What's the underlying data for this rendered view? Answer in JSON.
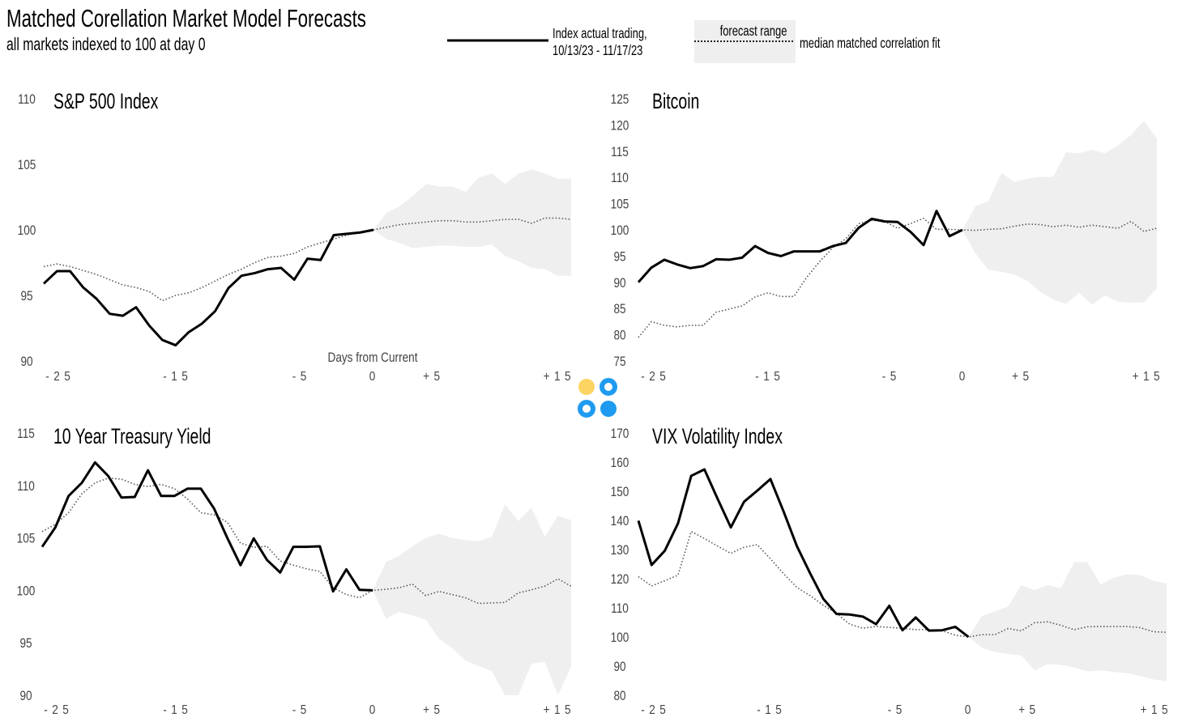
{
  "header": {
    "title": "Matched Corellation Market Model Forecasts",
    "subtitle": "all markets indexed to 100 at day 0"
  },
  "legend": {
    "actual_line1": "Index actual trading,",
    "actual_line2": "10/13/23 - 11/17/23",
    "range_label": "forecast range",
    "median_label": "median matched correlation fit"
  },
  "colors": {
    "actual": "#000000",
    "median": "#555555",
    "band": "#efefef",
    "logo_yellow": "#fcd462",
    "logo_blue": "#1e9bf0"
  },
  "logo_icon": "four-circles-logo",
  "chart_data": [
    {
      "type": "line",
      "title": "S&P 500 Index",
      "xlabel": "Days from Current",
      "x_ticks": [
        "- 2 5",
        "- 1 5",
        "- 5",
        "0",
        "+ 5",
        "+ 1 5"
      ],
      "xlim": [
        -25,
        15
      ],
      "ylim": [
        90,
        110
      ],
      "y_ticks": [
        "110",
        "105",
        "100",
        "95",
        "90"
      ],
      "y_tick_values": [
        110,
        105,
        100,
        95,
        90
      ],
      "actual": [
        95.9,
        96.85,
        96.85,
        95.6,
        94.75,
        93.6,
        93.45,
        94.1,
        92.7,
        91.6,
        91.2,
        92.2,
        92.85,
        93.8,
        95.55,
        96.5,
        96.7,
        97.0,
        97.1,
        96.2,
        97.8,
        97.7,
        99.6,
        99.7,
        99.8,
        100
      ],
      "median": [
        97.2,
        97.4,
        97.2,
        96.9,
        96.6,
        96.2,
        95.8,
        95.6,
        95.3,
        94.6,
        95.0,
        95.2,
        95.6,
        96.1,
        96.6,
        97.0,
        97.5,
        97.9,
        98.0,
        98.2,
        98.7,
        99.0,
        99.3,
        99.6,
        99.8,
        100,
        100.2,
        100.4,
        100.5,
        100.6,
        100.7,
        100.7,
        100.6,
        100.6,
        100.7,
        100.8,
        100.8,
        100.5,
        100.9,
        100.9,
        100.8
      ],
      "band_upper": [
        100,
        101.3,
        101.8,
        102.6,
        103.5,
        103.3,
        103.3,
        102.9,
        104.0,
        104.3,
        103.5,
        104.3,
        104.6,
        104.3,
        103.9,
        103.9
      ],
      "band_lower": [
        100,
        99.3,
        99.0,
        98.6,
        98.7,
        98.8,
        98.8,
        98.7,
        98.7,
        98.9,
        98.0,
        97.6,
        97.1,
        97.0,
        96.5,
        96.5
      ]
    },
    {
      "type": "line",
      "title": "Bitcoin",
      "x_ticks": [
        "- 2 5",
        "- 1 5",
        "- 5",
        "0",
        "+ 5",
        "+ 1 5"
      ],
      "xlim": [
        -25,
        15
      ],
      "ylim": [
        75,
        125
      ],
      "y_ticks": [
        "125",
        "120",
        "115",
        "110",
        "105",
        "100",
        "95",
        "90",
        "85",
        "80",
        "75"
      ],
      "y_tick_values": [
        125,
        120,
        115,
        110,
        105,
        100,
        95,
        90,
        85,
        80,
        75
      ],
      "actual": [
        90,
        92.8,
        94.3,
        93.4,
        92.7,
        93.1,
        94.4,
        94.3,
        94.7,
        96.9,
        95.6,
        95.0,
        95.9,
        95.9,
        95.9,
        96.9,
        97.5,
        100.4,
        102.1,
        101.6,
        101.5,
        99.6,
        97.1,
        103.6,
        98.8,
        100
      ],
      "median": [
        79.5,
        82.5,
        81.8,
        81.5,
        81.8,
        81.8,
        84.3,
        84.9,
        85.5,
        87.2,
        88.0,
        87.3,
        87.3,
        91.0,
        94.0,
        96.6,
        98.3,
        101.2,
        101.8,
        101.6,
        100.3,
        101.2,
        102.2,
        100.1,
        100.1,
        100,
        99.9,
        100.1,
        100.2,
        100.7,
        101.1,
        101.0,
        100.6,
        100.9,
        100.5,
        100.9,
        100.6,
        100.3,
        101.6,
        99.7,
        100.3
      ],
      "band_upper": [
        100,
        104.5,
        105.5,
        110.9,
        109.1,
        109.8,
        110.1,
        110.1,
        114.8,
        114.6,
        115.3,
        114.6,
        116.1,
        118.1,
        120.8,
        117.4
      ],
      "band_lower": [
        100,
        95.5,
        92.4,
        92.0,
        91.5,
        90.3,
        88.2,
        86.7,
        85.9,
        88.0,
        85.7,
        87.5,
        86.3,
        86.1,
        86.2,
        88.8
      ]
    },
    {
      "type": "line",
      "title": "10 Year Treasury Yield",
      "x_ticks": [
        "- 2 5",
        "- 1 5",
        "- 5",
        "0",
        "+ 5",
        "+ 1 5"
      ],
      "xlim": [
        -25,
        15
      ],
      "ylim": [
        90,
        115
      ],
      "y_ticks": [
        "115",
        "110",
        "105",
        "100",
        "95",
        "90"
      ],
      "y_tick_values": [
        115,
        110,
        105,
        100,
        95,
        90
      ],
      "actual": [
        104.15,
        106.0,
        109.0,
        110.25,
        112.2,
        110.9,
        108.85,
        108.9,
        111.45,
        109.0,
        109.0,
        109.7,
        109.7,
        107.8,
        105.0,
        102.4,
        104.95,
        102.9,
        101.7,
        104.15,
        104.15,
        104.2,
        99.9,
        102.0,
        100.05,
        100
      ],
      "median": [
        105.6,
        106.3,
        107.4,
        109.2,
        110.25,
        110.7,
        110.6,
        110.1,
        109.9,
        110.1,
        109.7,
        108.7,
        107.4,
        107.2,
        106.5,
        104.5,
        104.1,
        104.2,
        102.8,
        102.4,
        102.05,
        101.8,
        100.25,
        99.6,
        99.3,
        100,
        100.1,
        100.25,
        100.6,
        99.5,
        99.9,
        99.6,
        99.3,
        98.75,
        98.8,
        98.85,
        99.75,
        100.05,
        100.4,
        101.1,
        100.4
      ],
      "band_upper": [
        100,
        102.7,
        103.3,
        104.2,
        105.0,
        105.4,
        105.0,
        104.8,
        104.7,
        105.1,
        108.2,
        106.6,
        107.9,
        105.1,
        107.1,
        106.7
      ],
      "band_lower": [
        100,
        97.3,
        97.95,
        97.6,
        97.2,
        95.4,
        94.5,
        93.3,
        92.8,
        92.3,
        90.0,
        90.0,
        93.0,
        93.2,
        90.0,
        92.7
      ]
    },
    {
      "type": "line",
      "title": "VIX Volatility Index",
      "x_ticks": [
        "- 2 5",
        "- 1 5",
        "- 5",
        "0",
        "+ 5",
        "+ 1 5"
      ],
      "xlim": [
        -25,
        15
      ],
      "ylim": [
        80,
        170
      ],
      "y_ticks": [
        "170",
        "160",
        "150",
        "140",
        "130",
        "120",
        "110",
        "100",
        "90",
        "80"
      ],
      "y_tick_values": [
        170,
        160,
        150,
        140,
        130,
        120,
        110,
        100,
        90,
        80
      ],
      "actual": [
        139.9,
        124.7,
        129.6,
        139.0,
        155.3,
        157.5,
        147.4,
        137.6,
        146.4,
        150.2,
        154.2,
        143.0,
        131.2,
        121.9,
        113.1,
        107.9,
        107.7,
        107.0,
        104.4,
        110.7,
        102.3,
        106.7,
        102.2,
        102.3,
        103.5,
        100
      ],
      "median": [
        120.7,
        117.5,
        119.3,
        121.2,
        136.2,
        133.8,
        131.2,
        128.7,
        130.8,
        131.7,
        126.8,
        121.7,
        117.0,
        114.2,
        110.9,
        108.1,
        104.4,
        103.0,
        103.6,
        103.3,
        103.0,
        102.5,
        102.5,
        102.2,
        100.6,
        100,
        100.8,
        100.8,
        102.9,
        102.1,
        104.9,
        105.2,
        104.0,
        102.5,
        103.5,
        103.6,
        103.6,
        103.6,
        103.2,
        101.8,
        101.6
      ],
      "band_upper": [
        100,
        107.2,
        108.8,
        110.5,
        117.8,
        116.1,
        117.8,
        116.8,
        125.7,
        125.7,
        118.0,
        120.3,
        121.5,
        121.2,
        119.3,
        118.4
      ],
      "band_lower": [
        100,
        96.4,
        94.8,
        94.2,
        93.6,
        88.5,
        90.7,
        90.4,
        89.5,
        88.2,
        88.5,
        88.0,
        87.6,
        86.6,
        85.4,
        84.8
      ]
    }
  ]
}
